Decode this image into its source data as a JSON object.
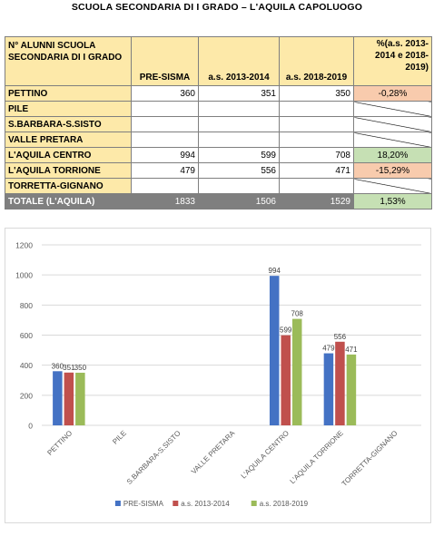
{
  "page_title": "SCUOLA SECONDARIA DI I GRADO – L'AQUILA CAPOLUOGO",
  "table": {
    "headers": [
      "N° ALUNNI SCUOLA SECONDARIA DI I GRADO",
      "PRE-SISMA",
      "a.s. 2013-2014",
      "a.s. 2018-2019",
      "%(a.s. 2013-2014 e 2018-2019)"
    ],
    "rows": [
      {
        "name": "PETTINO",
        "values": [
          "360",
          "351",
          "350"
        ],
        "pct": "-0,28%",
        "pct_color": "#f8cbad"
      },
      {
        "name": "PILE",
        "values": [
          "",
          "",
          ""
        ],
        "pct": "",
        "pct_color": ""
      },
      {
        "name": "S.BARBARA-S.SISTO",
        "values": [
          "",
          "",
          ""
        ],
        "pct": "",
        "pct_color": ""
      },
      {
        "name": "VALLE PRETARA",
        "values": [
          "",
          "",
          ""
        ],
        "pct": "",
        "pct_color": ""
      },
      {
        "name": "L'AQUILA CENTRO",
        "values": [
          "994",
          "599",
          "708"
        ],
        "pct": "18,20%",
        "pct_color": "#c6e0b4"
      },
      {
        "name": "L'AQUILA TORRIONE",
        "values": [
          "479",
          "556",
          "471"
        ],
        "pct": "-15,29%",
        "pct_color": "#f8cbad"
      },
      {
        "name": "TORRETTA-GIGNANO",
        "values": [
          "",
          "",
          ""
        ],
        "pct": "",
        "pct_color": ""
      }
    ],
    "total": {
      "name": "TOTALE (L'AQUILA)",
      "values": [
        "1833",
        "1506",
        "1529"
      ],
      "pct": "1,53%",
      "pct_color": "#c6e0b4"
    },
    "header_bg": "#fde9a9",
    "name_bg": "#fde9a9"
  },
  "chart_data": {
    "type": "bar",
    "categories": [
      "PETTINO",
      "PILE",
      "S.BARBARA-S.SISTO",
      "VALLE PRETARA",
      "L'AQUILA CENTRO",
      "L'AQUILA TORRIONE",
      "TORRETTA-GIGNANO"
    ],
    "series": [
      {
        "name": "PRE-SISMA",
        "color": "#4472c4",
        "values": [
          360,
          null,
          null,
          null,
          994,
          479,
          null
        ]
      },
      {
        "name": "a.s. 2013-2014",
        "color": "#c0504d",
        "values": [
          351,
          null,
          null,
          null,
          599,
          556,
          null
        ]
      },
      {
        "name": "a.s. 2018-2019",
        "color": "#9bbb59",
        "values": [
          350,
          null,
          null,
          null,
          708,
          471,
          null
        ]
      }
    ],
    "ylim": [
      0,
      1200
    ],
    "yticks": [
      0,
      200,
      400,
      600,
      800,
      1000,
      1200
    ],
    "grid": true,
    "legend": "bottom",
    "data_labels": true
  }
}
